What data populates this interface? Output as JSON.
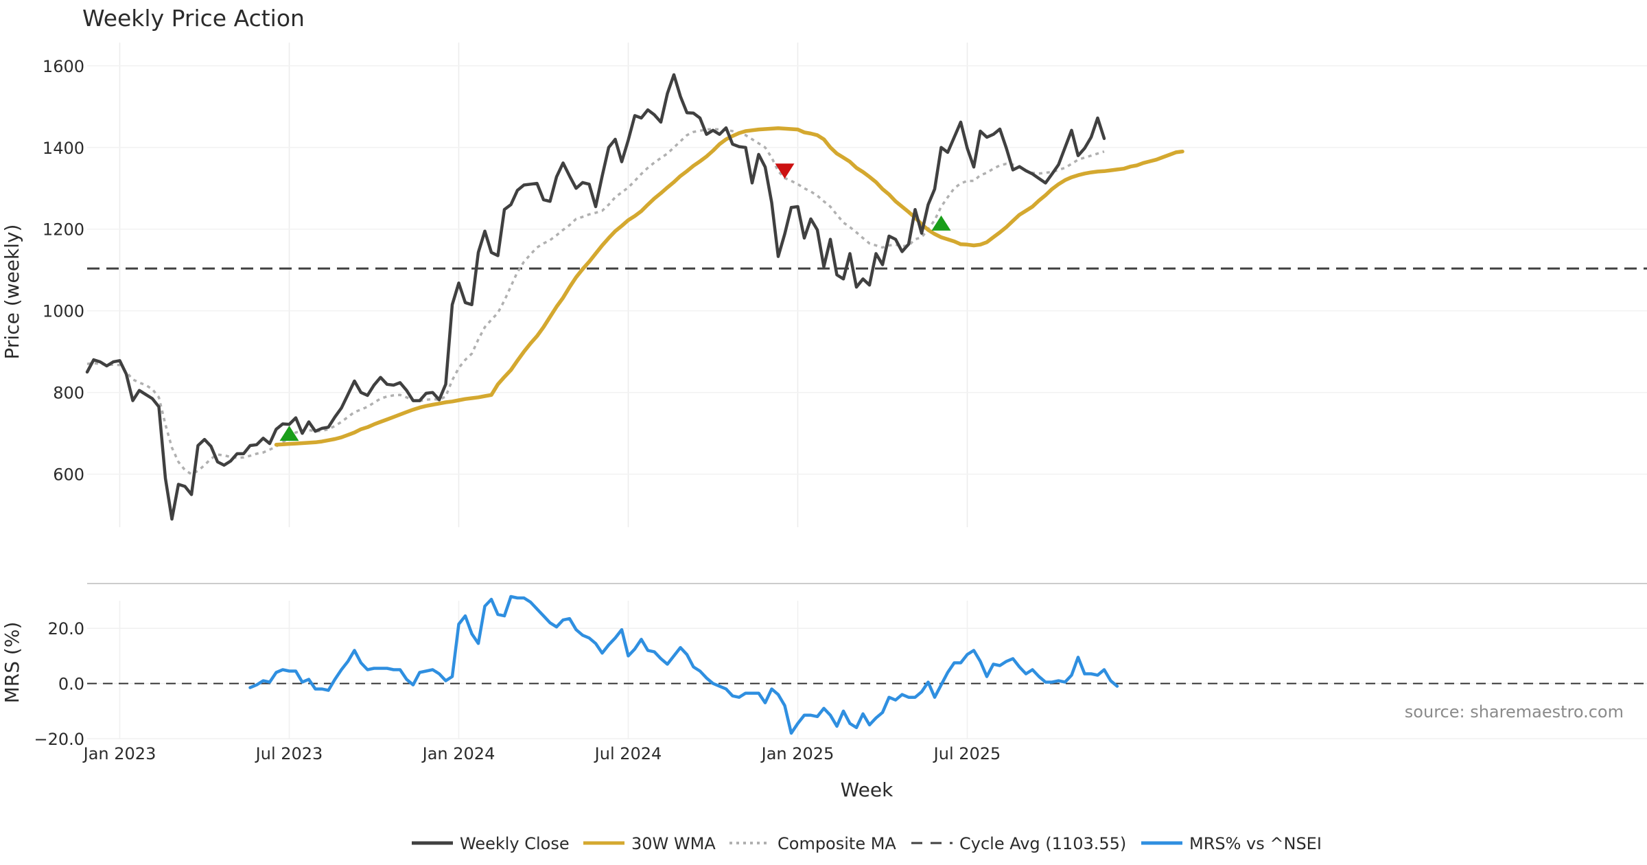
{
  "chart_data": {
    "type": "line",
    "title": "Weekly Price Action",
    "xlabel": "Week",
    "source": "source: sharemaestro.com",
    "x_ticks": [
      "Jan 2023",
      "Jul 2023",
      "Jan 2024",
      "Jul 2024",
      "Jan 2025",
      "Jul 2025"
    ],
    "x_tick_weeks": [
      5,
      31,
      57,
      83,
      109,
      135
    ],
    "price_panel": {
      "ylabel": "Price (weekly)",
      "ylim": [
        470,
        1640
      ],
      "yticks": [
        600,
        800,
        1000,
        1200,
        1400,
        1600
      ],
      "cycle_avg": 1103.55,
      "series": [
        {
          "name": "Weekly Close",
          "color": "#404040",
          "start_week": 0,
          "values": [
            850,
            880,
            875,
            865,
            875,
            878,
            845,
            780,
            805,
            795,
            785,
            765,
            590,
            490,
            575,
            570,
            550,
            670,
            685,
            668,
            630,
            622,
            632,
            650,
            650,
            670,
            672,
            688,
            675,
            710,
            723,
            722,
            738,
            700,
            728,
            705,
            712,
            715,
            740,
            762,
            795,
            828,
            800,
            793,
            818,
            837,
            820,
            818,
            824,
            805,
            780,
            780,
            798,
            800,
            782,
            820,
            1015,
            1068,
            1020,
            1015,
            1143,
            1195,
            1143,
            1135,
            1248,
            1260,
            1295,
            1308,
            1310,
            1312,
            1272,
            1268,
            1328,
            1362,
            1330,
            1300,
            1314,
            1310,
            1255,
            1330,
            1400,
            1420,
            1365,
            1418,
            1478,
            1472,
            1492,
            1480,
            1462,
            1532,
            1578,
            1525,
            1485,
            1484,
            1472,
            1432,
            1442,
            1432,
            1448,
            1408,
            1402,
            1400,
            1313,
            1383,
            1352,
            1265,
            1133,
            1188,
            1253,
            1255,
            1178,
            1225,
            1198,
            1108,
            1175,
            1088,
            1078,
            1140,
            1058,
            1078,
            1063,
            1140,
            1113,
            1183,
            1175,
            1145,
            1163,
            1248,
            1190,
            1260,
            1298,
            1400,
            1388,
            1425,
            1462,
            1398,
            1352,
            1440,
            1425,
            1432,
            1445,
            1398,
            1345,
            1353,
            1343,
            1335,
            1324,
            1313,
            1335,
            1358,
            1400,
            1442,
            1380,
            1398,
            1425,
            1472,
            1422
          ]
        },
        {
          "name": "30W WMA",
          "color": "#d4a82f",
          "start_week": 29,
          "values": [
            672,
            673,
            674,
            675,
            676,
            677,
            678,
            680,
            683,
            686,
            690,
            696,
            702,
            710,
            715,
            722,
            728,
            734,
            740,
            746,
            752,
            758,
            763,
            767,
            770,
            773,
            776,
            778,
            781,
            784,
            786,
            788,
            791,
            794,
            820,
            838,
            855,
            878,
            900,
            920,
            938,
            960,
            985,
            1010,
            1032,
            1058,
            1082,
            1102,
            1120,
            1140,
            1160,
            1178,
            1195,
            1208,
            1222,
            1232,
            1244,
            1260,
            1275,
            1288,
            1302,
            1315,
            1330,
            1342,
            1355,
            1366,
            1378,
            1392,
            1408,
            1420,
            1428,
            1435,
            1440,
            1442,
            1444,
            1445,
            1446,
            1447,
            1446,
            1445,
            1444,
            1437,
            1434,
            1430,
            1420,
            1400,
            1385,
            1375,
            1365,
            1350,
            1340,
            1328,
            1315,
            1298,
            1285,
            1268,
            1255,
            1242,
            1228,
            1212,
            1198,
            1188,
            1180,
            1175,
            1170,
            1163,
            1162,
            1160,
            1162,
            1168,
            1180,
            1192,
            1205,
            1220,
            1235,
            1245,
            1255,
            1270,
            1283,
            1298,
            1310,
            1320,
            1327,
            1332,
            1336,
            1339,
            1341,
            1342,
            1344,
            1346,
            1348,
            1353,
            1356,
            1362,
            1366,
            1370,
            1376,
            1382,
            1388,
            1390
          ]
        },
        {
          "name": "Composite MA",
          "color": "#b0b0b0",
          "start_week": 0,
          "values": [
            870,
            872,
            870,
            868,
            868,
            867,
            850,
            832,
            824,
            818,
            808,
            788,
            722,
            665,
            630,
            610,
            600,
            608,
            622,
            638,
            648,
            646,
            642,
            640,
            641,
            645,
            650,
            653,
            660,
            668,
            678,
            690,
            702,
            706,
            708,
            705,
            706,
            710,
            718,
            728,
            740,
            752,
            758,
            765,
            775,
            785,
            790,
            793,
            794,
            788,
            780,
            779,
            782,
            784,
            782,
            790,
            830,
            860,
            880,
            895,
            930,
            960,
            978,
            995,
            1025,
            1060,
            1095,
            1120,
            1138,
            1155,
            1165,
            1173,
            1185,
            1198,
            1210,
            1225,
            1230,
            1236,
            1240,
            1245,
            1260,
            1278,
            1290,
            1302,
            1318,
            1335,
            1350,
            1363,
            1374,
            1385,
            1400,
            1415,
            1430,
            1438,
            1441,
            1444,
            1445,
            1444,
            1443,
            1440,
            1435,
            1430,
            1420,
            1410,
            1400,
            1375,
            1342,
            1325,
            1318,
            1310,
            1300,
            1292,
            1282,
            1268,
            1255,
            1235,
            1216,
            1205,
            1192,
            1178,
            1165,
            1160,
            1155,
            1160,
            1162,
            1158,
            1160,
            1175,
            1180,
            1200,
            1222,
            1255,
            1278,
            1300,
            1312,
            1318,
            1318,
            1332,
            1338,
            1348,
            1356,
            1360,
            1358,
            1352,
            1343,
            1338,
            1336,
            1338,
            1340,
            1345,
            1350,
            1360,
            1370,
            1375,
            1380,
            1385,
            1390
          ]
        },
        {
          "name": "Cycle Avg (1103.55)",
          "color": "#404040"
        }
      ],
      "signals": [
        {
          "type": "buy",
          "week": 31,
          "value": 700,
          "color": "#1a9e1a"
        },
        {
          "type": "sell",
          "week": 107,
          "value": 1342,
          "color": "#cc1111"
        },
        {
          "type": "buy",
          "week": 131,
          "value": 1215,
          "color": "#1a9e1a"
        }
      ]
    },
    "mrs_panel": {
      "ylabel": "MRS (%)",
      "ylim": [
        -20,
        30
      ],
      "yticks": [
        20,
        0,
        -20
      ],
      "ytick_labels": [
        "20.0",
        "0.0",
        "−20.0"
      ],
      "baseline": 0,
      "series": [
        {
          "name": "MRS% vs ^NSEI",
          "color": "#2f8fe0",
          "start_week": 25,
          "values": [
            -1.5,
            -0.5,
            1,
            0.5,
            4,
            5,
            4.5,
            4.5,
            0.5,
            1.5,
            -2,
            -2,
            -2.5,
            1.5,
            5,
            8,
            12,
            7.5,
            5,
            5.5,
            5.5,
            5.5,
            5,
            5,
            1.5,
            -0.5,
            4,
            4.5,
            5,
            3.5,
            1,
            2.5,
            21.5,
            24.5,
            18,
            14.5,
            28,
            30.5,
            25,
            24.5,
            31.5,
            31,
            31,
            29.5,
            27,
            24.5,
            22,
            20.5,
            23,
            23.5,
            19.5,
            17.5,
            16.5,
            14.5,
            11,
            14,
            16.5,
            19.5,
            10,
            12.5,
            16,
            12,
            11.5,
            9,
            7,
            10,
            13,
            10.5,
            6,
            4.5,
            2,
            0,
            -1,
            -2,
            -4.5,
            -5,
            -3.5,
            -3.5,
            -3.5,
            -7,
            -2,
            -4,
            -8,
            -18,
            -14.5,
            -11.5,
            -11.5,
            -12,
            -9,
            -11.5,
            -15.5,
            -10,
            -14.5,
            -16,
            -11,
            -15,
            -12.5,
            -10.5,
            -5,
            -6,
            -4,
            -5,
            -5,
            -3,
            0.5,
            -5,
            -0.5,
            4,
            7.5,
            7.5,
            10.5,
            12,
            8,
            2.5,
            7,
            6.5,
            8,
            9,
            6,
            3.5,
            5,
            2.5,
            0.5,
            0.5,
            1,
            0.5,
            3,
            9.5,
            3.5,
            3.5,
            3,
            5,
            1,
            -1
          ]
        }
      ]
    },
    "legend": {
      "placement": "bottom-center",
      "items": [
        "Weekly Close",
        "30W WMA",
        "Composite MA",
        "Cycle Avg (1103.55)",
        "MRS% vs ^NSEI"
      ]
    }
  }
}
